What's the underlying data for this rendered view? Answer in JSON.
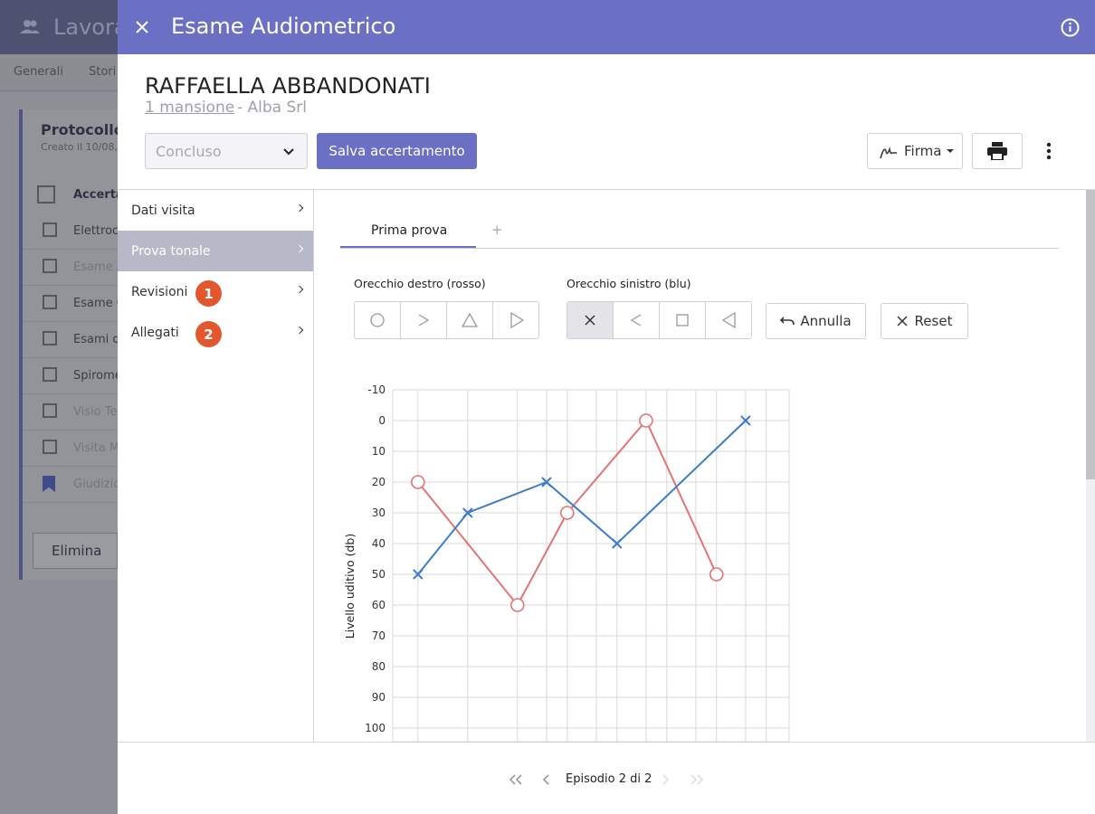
{
  "background": {
    "title": "Lavora",
    "tabs": [
      "Generali",
      "Stori"
    ],
    "card_title": "Protocollo I",
    "card_subtitle": "Creato il 10/08,",
    "list_header": "Accertam",
    "items": [
      "Elettroca",
      "Esame A",
      "Esame C",
      "Esami de",
      "Spirome",
      "Visio Tes",
      "Visita M",
      "Giudizio"
    ],
    "button": "Elimina"
  },
  "header": {
    "title": "Esame Audiometrico"
  },
  "patient": {
    "name": "RAFFAELLA ABBANDONATI",
    "link": "1 mansione",
    "company": "- Alba Srl"
  },
  "toolbar": {
    "status": "Concluso",
    "save": "Salva accertamento",
    "sign": "Firma"
  },
  "sidebar": [
    {
      "label": "Dati visita"
    },
    {
      "label": "Prova tonale",
      "selected": true
    },
    {
      "label": "Revisioni",
      "badge": 1
    },
    {
      "label": "Allegati",
      "badge": 2
    }
  ],
  "tabs": [
    "Prima prova",
    "+"
  ],
  "ears": {
    "right": "Orecchio destro (rosso)",
    "left": "Orecchio sinistro (blu)"
  },
  "buttons": {
    "undo": "Annulla",
    "reset": "Reset"
  },
  "chart_data": {
    "type": "line",
    "y_label": "Livello uditivo (db)",
    "xlim": [
      88,
      22000
    ],
    "log_x": true,
    "xgrid": [
      125,
      250,
      500,
      750,
      1000,
      1500,
      2000,
      3000,
      4000,
      6000,
      8000,
      12000,
      16000
    ],
    "ylim": [
      -10,
      100
    ],
    "y_reversed": true,
    "yticks": [
      -10,
      0,
      10,
      20,
      30,
      40,
      50,
      60,
      70,
      80,
      90,
      100
    ],
    "grid": true,
    "series": [
      {
        "color": "#e57373",
        "marker": "circle",
        "x": [
          125,
          500,
          1000,
          3000,
          8000
        ],
        "values": [
          20,
          60,
          30,
          0,
          50
        ]
      },
      {
        "color": "#3d7cc9",
        "marker": "x",
        "x": [
          125,
          250,
          750,
          2000,
          12000
        ],
        "values": [
          50,
          30,
          20,
          40,
          0
        ]
      }
    ]
  },
  "footer": {
    "pager": "Episodio 2 di 2"
  }
}
